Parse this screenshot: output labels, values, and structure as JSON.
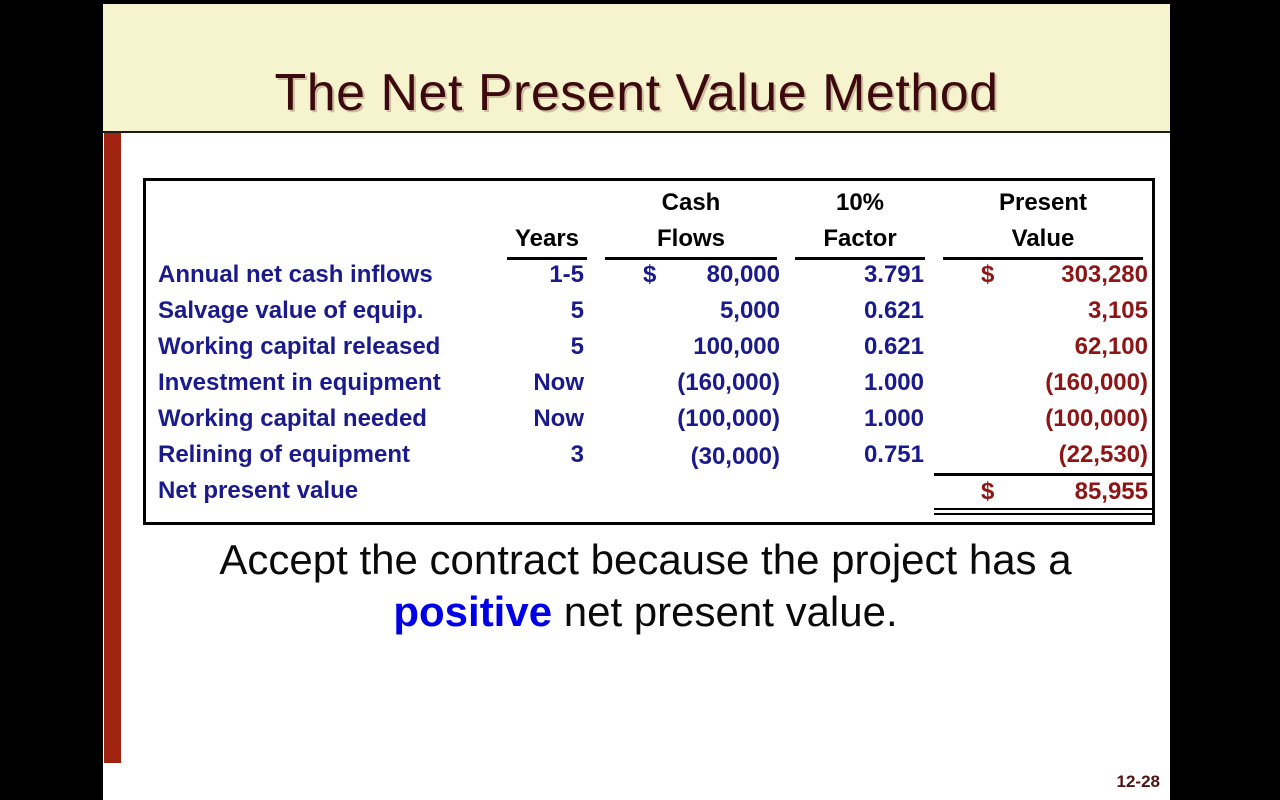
{
  "title": "The Net Present Value Method",
  "page_number": "12-28",
  "colors": {
    "title-band-bg": "#F6F3CF",
    "accent-bar": "#A0240F",
    "title-text": "#3C0A0E",
    "row-text": "#1A1A8C",
    "value-text": "#8E1515",
    "highlight-text": "#0000E6",
    "page-number-text": "#4C1412"
  },
  "table": {
    "col_headers": {
      "years": "Years",
      "cash1": "Cash",
      "cash2": "Flows",
      "factor1": "10%",
      "factor2": "Factor",
      "pv1": "Present",
      "pv2": "Value"
    },
    "rows": [
      {
        "label": "Annual net cash inflows",
        "years": "1-5",
        "cf_dollar": "$",
        "cash_flow": "80,000",
        "factor": "3.791",
        "pv_dollar": "$",
        "pv": "303,280"
      },
      {
        "label": "Salvage value of equip.",
        "years": "5",
        "cf_dollar": "",
        "cash_flow": "5,000",
        "factor": "0.621",
        "pv_dollar": "",
        "pv": "3,105"
      },
      {
        "label": "Working capital released",
        "years": "5",
        "cf_dollar": "",
        "cash_flow": "100,000",
        "factor": "0.621",
        "pv_dollar": "",
        "pv": "62,100"
      },
      {
        "label": "Investment in equipment",
        "years": "Now",
        "cf_dollar": "",
        "cash_flow": "(160,000)",
        "factor": "1.000",
        "pv_dollar": "",
        "pv": "(160,000)"
      },
      {
        "label": "Working capital needed",
        "years": "Now",
        "cf_dollar": "",
        "cash_flow": "(100,000)",
        "factor": "1.000",
        "pv_dollar": "",
        "pv": "(100,000)"
      },
      {
        "label": "Relining of equipment",
        "years": "3",
        "cf_dollar": "",
        "cash_flow": "(30,000)",
        "factor": "0.751",
        "pv_dollar": "",
        "pv": "(22,530)"
      }
    ],
    "total": {
      "label": "Net present value",
      "pv_dollar": "$",
      "pv": "85,955"
    }
  },
  "caption": {
    "line1": "Accept the contract because the project has a",
    "highlight": "positive",
    "line2_rest": "net present value."
  }
}
